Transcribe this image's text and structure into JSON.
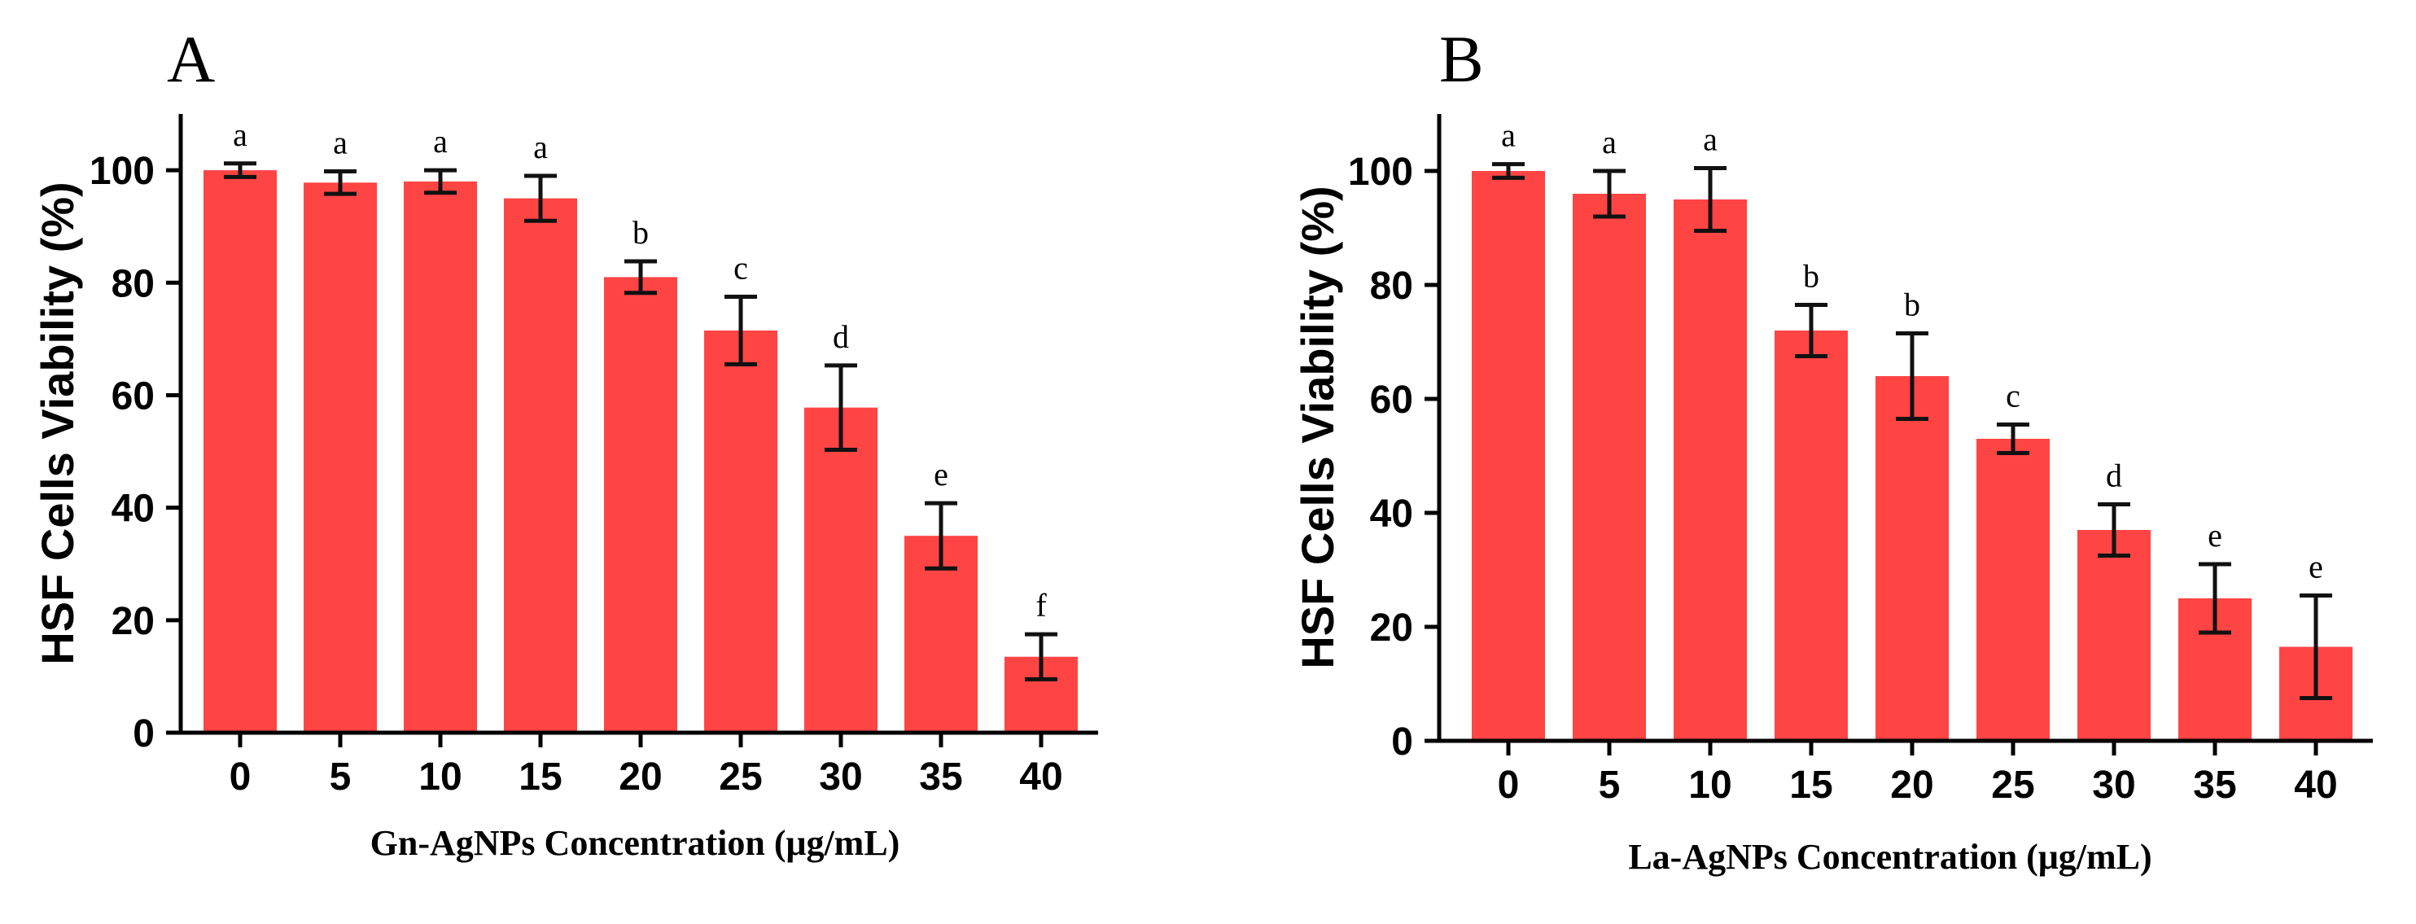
{
  "chart_data": [
    {
      "type": "bar",
      "panel_label": "A",
      "title": "",
      "xlabel": "Gn-AgNPs Concentration (μg/mL)",
      "ylabel": "HSF Cells Viability (%)",
      "categories": [
        "0",
        "5",
        "10",
        "15",
        "20",
        "25",
        "30",
        "35",
        "40"
      ],
      "values": [
        100,
        97.8,
        98,
        95,
        81,
        71.5,
        57.8,
        35,
        13.5
      ],
      "errors": [
        1.2,
        2,
        2,
        4,
        2.8,
        6,
        7.5,
        5.8,
        4
      ],
      "significance": [
        "a",
        "a",
        "a",
        "a",
        "b",
        "c",
        "d",
        "e",
        "f"
      ],
      "yticks": [
        "0",
        "20",
        "40",
        "60",
        "80",
        "100"
      ],
      "ylim": [
        0,
        110
      ],
      "color": "#ff4444"
    },
    {
      "type": "bar",
      "panel_label": "B",
      "title": "",
      "xlabel": "La-AgNPs Concentration (μg/mL)",
      "ylabel": "HSF Cells Viability (%)",
      "categories": [
        "0",
        "5",
        "10",
        "15",
        "20",
        "25",
        "30",
        "35",
        "40"
      ],
      "values": [
        100,
        96,
        95,
        72,
        64,
        53,
        37,
        25,
        16.5
      ],
      "errors": [
        1.2,
        4,
        5.5,
        4.5,
        7.5,
        2.5,
        4.5,
        6,
        9
      ],
      "significance": [
        "a",
        "a",
        "a",
        "b",
        "b",
        "c",
        "d",
        "e",
        "e"
      ],
      "yticks": [
        "0",
        "20",
        "40",
        "60",
        "80",
        "100"
      ],
      "ylim": [
        0,
        110
      ],
      "color": "#ff4444"
    }
  ]
}
